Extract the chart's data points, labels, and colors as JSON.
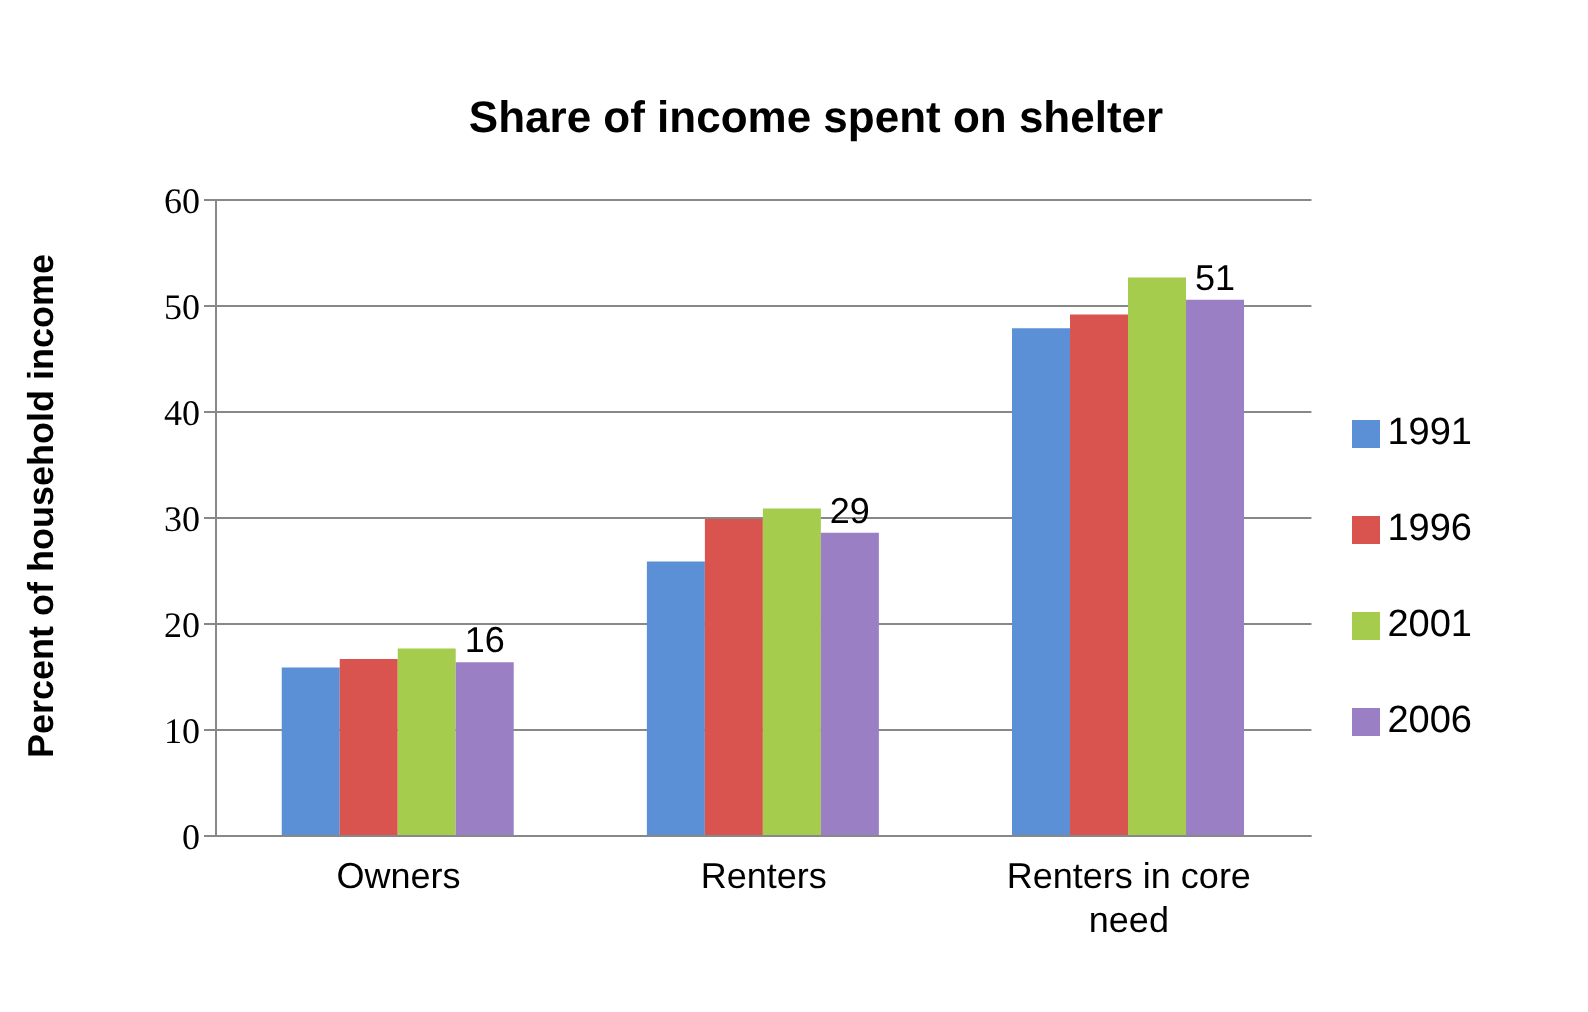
{
  "chart_data": {
    "type": "bar",
    "title": "Share of income spent on shelter",
    "ylabel": "Percent of household income",
    "categories": [
      "Owners",
      "Renters",
      "Renters in core need"
    ],
    "series": [
      {
        "name": "1991",
        "color": "#5b8fd6",
        "values": [
          15.9,
          25.9,
          47.9
        ]
      },
      {
        "name": "1996",
        "color": "#d9544f",
        "values": [
          16.7,
          29.9,
          49.2
        ]
      },
      {
        "name": "2001",
        "color": "#a6cc4e",
        "values": [
          17.7,
          30.9,
          52.7
        ]
      },
      {
        "name": "2006",
        "color": "#9b7fc4",
        "values": [
          16.4,
          28.6,
          50.6
        ],
        "value_labels": [
          "16",
          "29",
          "51"
        ]
      }
    ],
    "ylim": [
      0,
      60
    ],
    "yticks": [
      0,
      10,
      20,
      30,
      40,
      50,
      60
    ],
    "grid": "y",
    "legend": "right"
  }
}
